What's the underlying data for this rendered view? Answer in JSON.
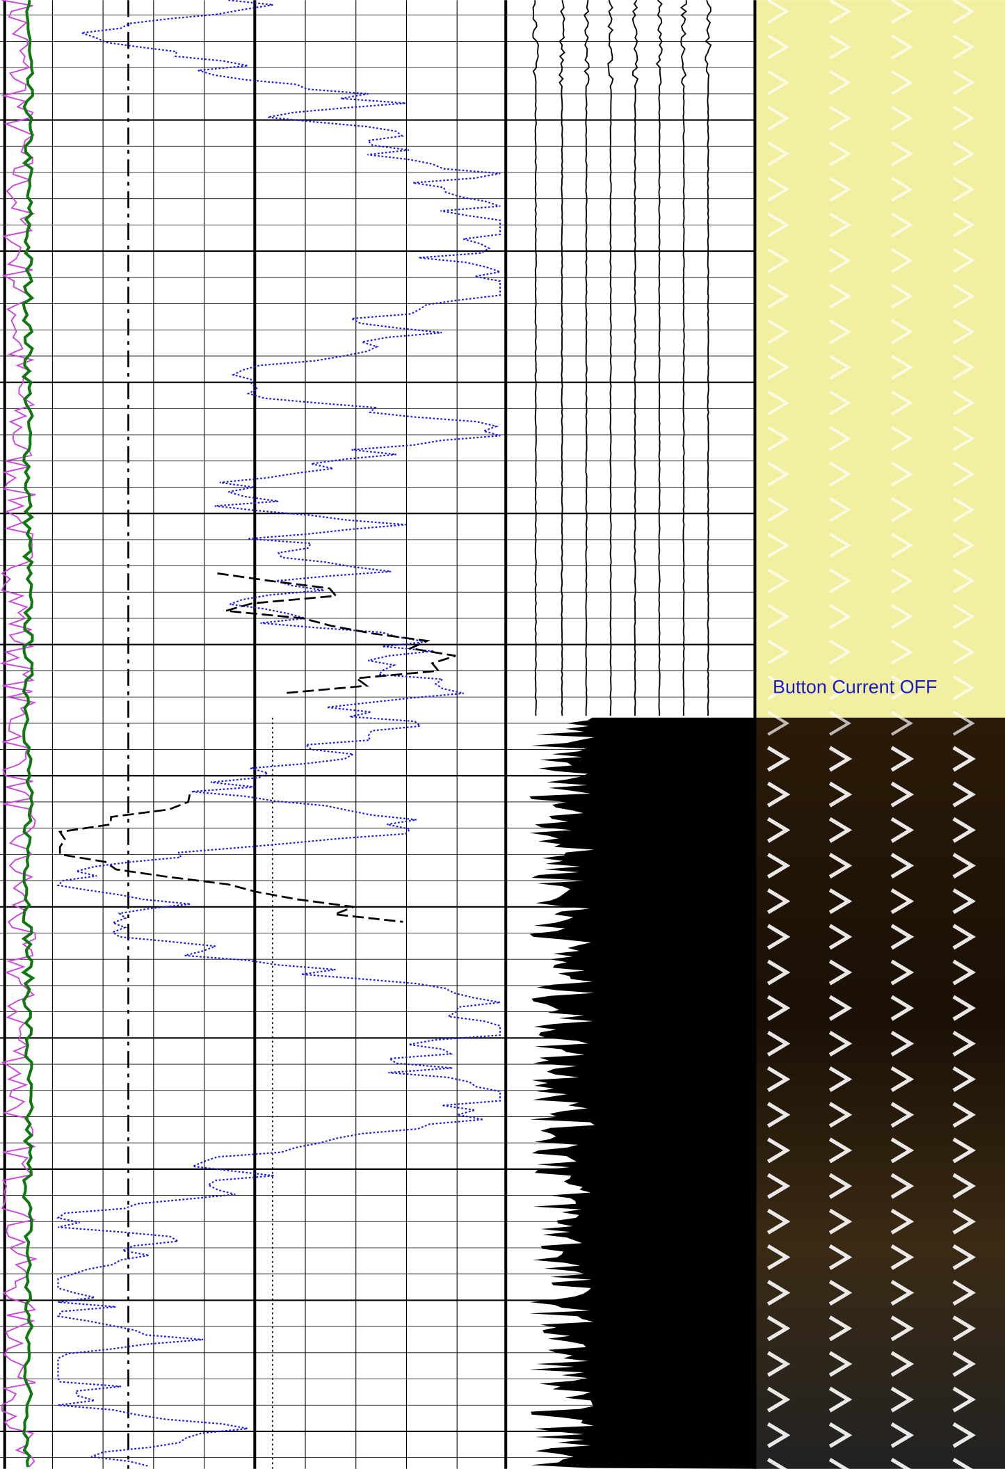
{
  "annotation": "Button Current OFF"
}
